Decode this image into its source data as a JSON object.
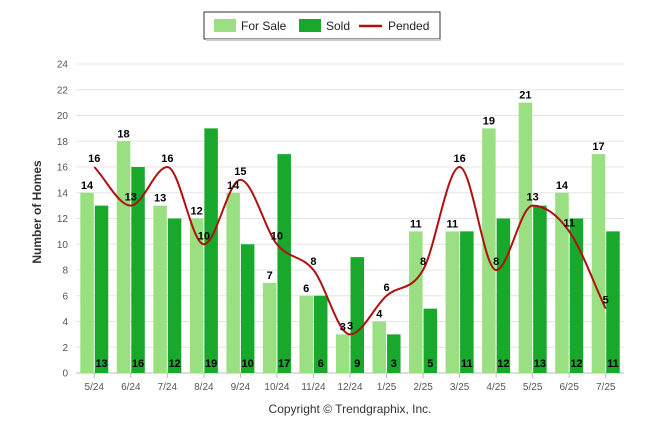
{
  "chart_data": {
    "type": "bar",
    "categories": [
      "5/24",
      "6/24",
      "7/24",
      "8/24",
      "9/24",
      "10/24",
      "11/24",
      "12/24",
      "1/25",
      "2/25",
      "3/25",
      "4/25",
      "5/25",
      "6/25",
      "7/25"
    ],
    "series": [
      {
        "name": "For Sale",
        "kind": "bar",
        "color": "#9adf82",
        "values": [
          14,
          18,
          13,
          12,
          14,
          7,
          6,
          3,
          4,
          11,
          11,
          19,
          21,
          14,
          17
        ]
      },
      {
        "name": "Sold",
        "kind": "bar",
        "color": "#17a82c",
        "values": [
          13,
          16,
          12,
          19,
          10,
          17,
          6,
          9,
          3,
          5,
          11,
          12,
          13,
          12,
          11
        ]
      },
      {
        "name": "Pended",
        "kind": "line",
        "color": "#b01010",
        "values": [
          16,
          13,
          16,
          10,
          15,
          10,
          8,
          3,
          6,
          8,
          16,
          8,
          13,
          11,
          5
        ]
      }
    ],
    "ylabel": "Number of Homes",
    "xlabel": "",
    "ylim": [
      0,
      24
    ],
    "yticks": [
      0,
      2,
      4,
      6,
      8,
      10,
      12,
      14,
      16,
      18,
      20,
      22,
      24
    ],
    "grid": true,
    "legend": "top-center"
  },
  "credit": "Copyright © Trendgraphix, Inc."
}
